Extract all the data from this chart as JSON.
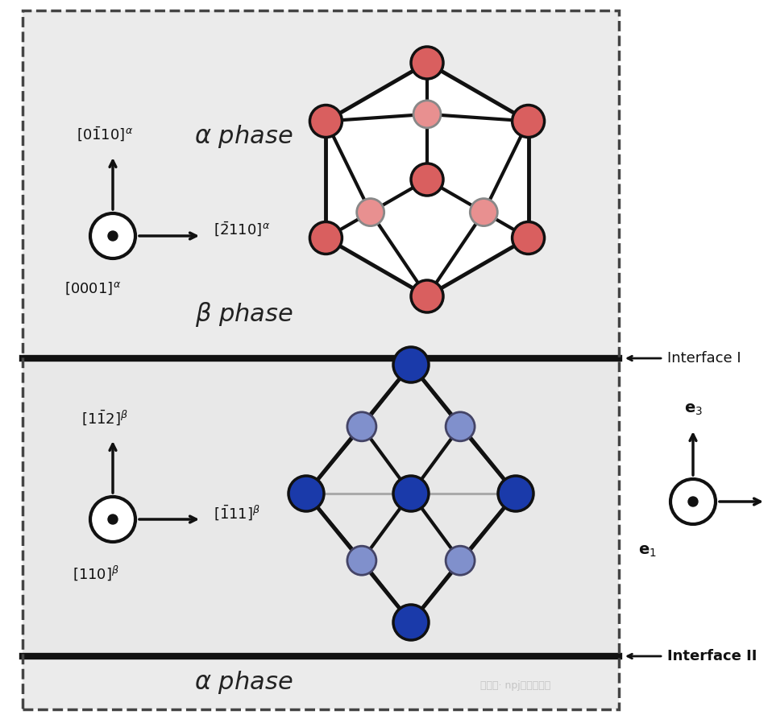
{
  "fig_bg": "#ffffff",
  "outer_bg": "#ffffff",
  "alpha_bg": "#ebebeb",
  "beta_bg": "#e8e8e8",
  "red_atom_dark": "#d95f5f",
  "red_atom_light": "#e89090",
  "blue_atom_dark": "#1a3aaa",
  "blue_atom_light": "#8090cc",
  "atom_edge_dark": "#111111",
  "atom_edge_light": "#555555",
  "bond_black": "#111111",
  "bond_gray": "#aaaaaa",
  "hex_fill": "#ffffff",
  "interface_I": "Interface I",
  "interface_II": "Interface II",
  "watermark": "公众号· npj计算材料学"
}
